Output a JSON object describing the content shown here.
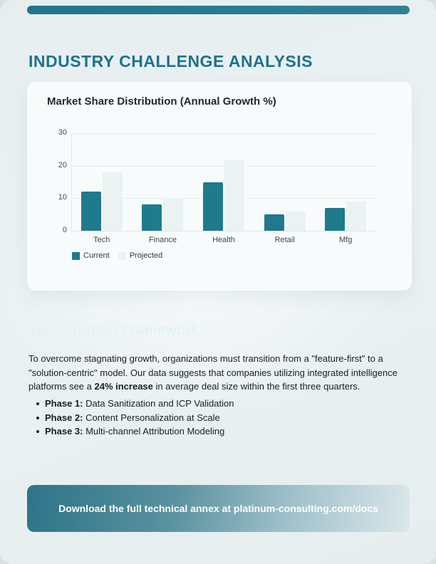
{
  "page": {
    "title": "INDUSTRY CHALLENGE ANALYSIS",
    "accent_color": "#1f7589",
    "background_color": "#e9f0f2"
  },
  "chart_card": {
    "title": "Market Share Distribution (Annual Growth %)"
  },
  "chart_data": {
    "type": "bar",
    "title": "Market Share Distribution (Annual Growth %)",
    "categories": [
      "Tech",
      "Finance",
      "Health",
      "Retail",
      "Mfg"
    ],
    "series": [
      {
        "name": "Current",
        "color": "#1f7a8c",
        "values": [
          12,
          8,
          15,
          5,
          7
        ]
      },
      {
        "name": "Projected",
        "color": "#eaf3f2",
        "values": [
          18,
          10,
          22,
          6,
          9
        ]
      }
    ],
    "xlabel": "",
    "ylabel": "",
    "ylim": [
      0,
      30
    ],
    "yticks": [
      0,
      10,
      20,
      30
    ],
    "grid": true,
    "legend_position": "bottom-left"
  },
  "solution": {
    "heading": "The Solution Framework",
    "paragraph": {
      "before_bold": "To overcome stagnating growth, organizations must transition from a \"feature-first\" to a \"solution-centric\" model. Our data suggests that companies utilizing integrated intelligence platforms see a ",
      "bold": "24% increase",
      "after_bold": " in average deal size within the first three quarters."
    },
    "phases": [
      {
        "label": "Phase 1:",
        "text": " Data Sanitization and ICP Validation"
      },
      {
        "label": "Phase 2:",
        "text": " Content Personalization at Scale"
      },
      {
        "label": "Phase 3:",
        "text": " Multi-channel Attribution Modeling"
      }
    ]
  },
  "banner": {
    "text": "Download the full technical annex at platinum-consulting.com/docs"
  }
}
